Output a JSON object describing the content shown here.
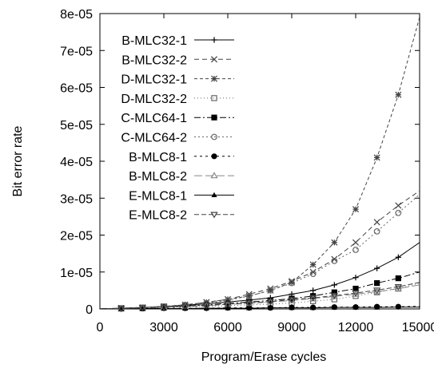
{
  "chart_data": {
    "type": "line",
    "xlabel": "Program/Erase cycles",
    "ylabel": "Bit error rate",
    "xlim": [
      0,
      15000
    ],
    "ylim": [
      0,
      8e-05
    ],
    "xticks": [
      {
        "value": 0,
        "label": "0"
      },
      {
        "value": 3000,
        "label": "3000"
      },
      {
        "value": 6000,
        "label": "6000"
      },
      {
        "value": 9000,
        "label": "9000"
      },
      {
        "value": 12000,
        "label": "12000"
      },
      {
        "value": 15000,
        "label": "15000"
      }
    ],
    "yticks": [
      {
        "value": 0,
        "label": "0"
      },
      {
        "value": 1e-05,
        "label": "1e-05"
      },
      {
        "value": 2e-05,
        "label": "2e-05"
      },
      {
        "value": 3e-05,
        "label": "3e-05"
      },
      {
        "value": 4e-05,
        "label": "4e-05"
      },
      {
        "value": 5e-05,
        "label": "5e-05"
      },
      {
        "value": 6e-05,
        "label": "6e-05"
      },
      {
        "value": 7e-05,
        "label": "7e-05"
      },
      {
        "value": 8e-05,
        "label": "8e-05"
      }
    ],
    "grid": false,
    "legend_position": "top-left",
    "series": [
      {
        "name": "B-MLC32-1",
        "marker": "plus",
        "dash": "",
        "color": "#000000",
        "x": [
          0,
          1000,
          2000,
          3000,
          4000,
          5000,
          6000,
          7000,
          8000,
          9000,
          10000,
          11000,
          12000,
          13000,
          14000,
          15000
        ],
        "y": [
          0,
          2e-07,
          4e-07,
          6e-07,
          1e-06,
          1.4e-06,
          1.9e-06,
          2.4e-06,
          3e-06,
          4e-06,
          5e-06,
          6.5e-06,
          8.5e-06,
          1.1e-05,
          1.4e-05,
          1.8e-05
        ]
      },
      {
        "name": "B-MLC32-2",
        "marker": "x",
        "dash": "6,4",
        "color": "#444444",
        "x": [
          0,
          1000,
          2000,
          3000,
          4000,
          5000,
          6000,
          7000,
          8000,
          9000,
          10000,
          11000,
          12000,
          13000,
          14000,
          15000
        ],
        "y": [
          0,
          2e-07,
          4e-07,
          7e-07,
          1.1e-06,
          1.8e-06,
          2.6e-06,
          4e-06,
          5.5e-06,
          7.5e-06,
          1e-05,
          1.35e-05,
          1.8e-05,
          2.35e-05,
          2.8e-05,
          3.2e-05
        ]
      },
      {
        "name": "D-MLC32-1",
        "marker": "star",
        "dash": "4,3",
        "color": "#444444",
        "x": [
          0,
          1000,
          2000,
          3000,
          4000,
          5000,
          6000,
          7000,
          8000,
          9000,
          10000,
          11000,
          12000,
          13000,
          14000,
          15000
        ],
        "y": [
          0,
          2e-07,
          4e-07,
          7e-07,
          1.1e-06,
          1.8e-06,
          2.6e-06,
          3.5e-06,
          5e-06,
          7.2e-06,
          1.2e-05,
          1.8e-05,
          2.7e-05,
          4.1e-05,
          5.8e-05,
          7.9e-05
        ]
      },
      {
        "name": "D-MLC32-2",
        "marker": "square-open",
        "dash": "1,3",
        "color": "#666666",
        "x": [
          0,
          1000,
          2000,
          3000,
          4000,
          5000,
          6000,
          7000,
          8000,
          9000,
          10000,
          11000,
          12000,
          13000,
          14000,
          15000
        ],
        "y": [
          0,
          1e-07,
          2e-07,
          4e-07,
          5e-07,
          7e-07,
          9e-07,
          1.1e-06,
          1.3e-06,
          1.6e-06,
          2.1e-06,
          2.6e-06,
          3.5e-06,
          4.5e-06,
          5.5e-06,
          7e-06
        ]
      },
      {
        "name": "C-MLC64-1",
        "marker": "square-filled",
        "dash": "8,3,2,3",
        "color": "#000000",
        "x": [
          0,
          1000,
          2000,
          3000,
          4000,
          5000,
          6000,
          7000,
          8000,
          9000,
          10000,
          11000,
          12000,
          13000,
          14000,
          15000
        ],
        "y": [
          0,
          2e-07,
          3e-07,
          5e-07,
          8e-07,
          1.1e-06,
          1.5e-06,
          1.9e-06,
          2.3e-06,
          2.8e-06,
          3.5e-06,
          4.5e-06,
          5.5e-06,
          7e-06,
          8.3e-06,
          1e-05
        ]
      },
      {
        "name": "C-MLC64-2",
        "marker": "circle-open",
        "dash": "2,3",
        "color": "#666666",
        "x": [
          0,
          1000,
          2000,
          3000,
          4000,
          5000,
          6000,
          7000,
          8000,
          9000,
          10000,
          11000,
          12000,
          13000,
          14000,
          15000
        ],
        "y": [
          0,
          2e-07,
          4e-07,
          7e-07,
          1.1e-06,
          1.6e-06,
          2.3e-06,
          3.5e-06,
          5e-06,
          7e-06,
          9.5e-06,
          1.3e-05,
          1.6e-05,
          2.1e-05,
          2.6e-05,
          3.1e-05
        ]
      },
      {
        "name": "B-MLC8-1",
        "marker": "circle-filled",
        "dash": "3,4",
        "color": "#000000",
        "x": [
          0,
          1000,
          2000,
          3000,
          4000,
          5000,
          6000,
          7000,
          8000,
          9000,
          10000,
          11000,
          12000,
          13000,
          14000,
          15000
        ],
        "y": [
          0,
          1e-07,
          1e-07,
          2e-07,
          2e-07,
          2e-07,
          3e-07,
          3e-07,
          3e-07,
          4e-07,
          4e-07,
          5e-07,
          5e-07,
          6e-07,
          6e-07,
          7e-07
        ]
      },
      {
        "name": "B-MLC8-2",
        "marker": "triangle-open",
        "dash": "10,4",
        "color": "#888888",
        "x": [
          0,
          1000,
          2000,
          3000,
          4000,
          5000,
          6000,
          7000,
          8000,
          9000,
          10000,
          11000,
          12000,
          13000,
          14000,
          15000
        ],
        "y": [
          0,
          1e-07,
          3e-07,
          5e-07,
          7e-07,
          9e-07,
          1.2e-06,
          1.5e-06,
          1.9e-06,
          2.3e-06,
          2.8e-06,
          3.4e-06,
          4e-06,
          4.7e-06,
          5.5e-06,
          6.5e-06
        ]
      },
      {
        "name": "E-MLC8-1",
        "marker": "triangle-filled",
        "dash": "",
        "color": "#000000",
        "x": [
          0,
          1000,
          2000,
          3000,
          4000,
          5000,
          6000,
          7000,
          8000,
          9000,
          10000,
          11000,
          12000,
          13000,
          14000,
          15000
        ],
        "y": [
          0,
          0,
          1e-07,
          1e-07,
          1e-07,
          2e-07,
          2e-07,
          2e-07,
          3e-07,
          3e-07,
          3e-07,
          4e-07,
          4e-07,
          4e-07,
          5e-07,
          5e-07
        ]
      },
      {
        "name": "E-MLC8-2",
        "marker": "triangle-down-open",
        "dash": "6,3",
        "color": "#444444",
        "x": [
          0,
          1000,
          2000,
          3000,
          4000,
          5000,
          6000,
          7000,
          8000,
          9000,
          10000,
          11000,
          12000,
          13000,
          14000,
          15000
        ],
        "y": [
          0,
          1e-07,
          3e-07,
          5e-07,
          7e-07,
          1e-06,
          1.3e-06,
          1.6e-06,
          2e-06,
          2.5e-06,
          3e-06,
          3.6e-06,
          4.3e-06,
          5.1e-06,
          6e-06,
          7.2e-06
        ]
      }
    ]
  }
}
